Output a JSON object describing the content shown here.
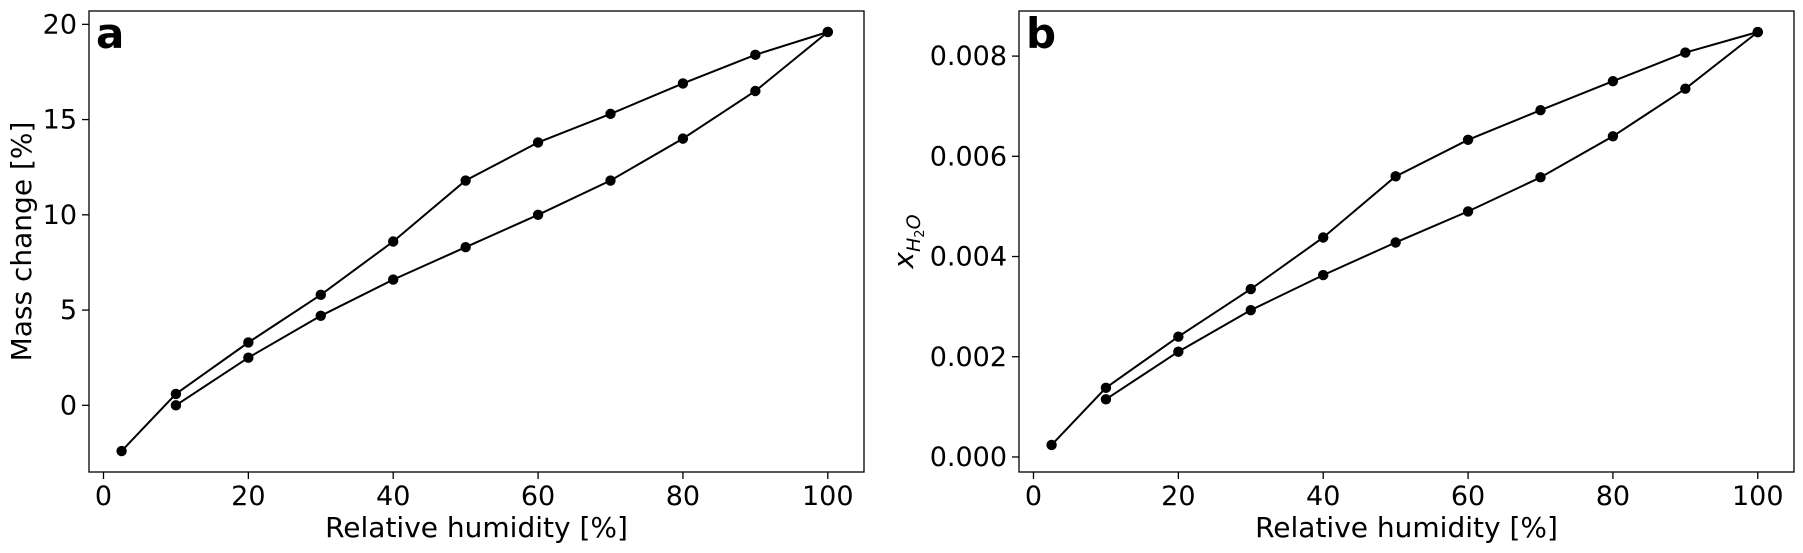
{
  "chart_data": [
    {
      "type": "line",
      "panel_letter": "a",
      "xlabel": "Relative humidity [%]",
      "ylabel": "Mass change [%]",
      "xlim": [
        -2,
        105
      ],
      "ylim": [
        -3.5,
        20.7
      ],
      "xticks": [
        0,
        20,
        40,
        60,
        80,
        100
      ],
      "yticks": [
        0,
        5,
        10,
        15,
        20
      ],
      "grid": false,
      "series": [
        {
          "x": [
            2.5,
            10,
            20,
            30,
            40,
            50,
            60,
            70,
            80,
            90,
            100
          ],
          "y": [
            -2.4,
            0.6,
            3.3,
            5.8,
            8.6,
            11.8,
            13.8,
            15.3,
            16.9,
            18.4,
            19.6
          ]
        },
        {
          "x": [
            10,
            20,
            30,
            40,
            50,
            60,
            70,
            80,
            90,
            100
          ],
          "y": [
            0.0,
            2.5,
            4.7,
            6.6,
            8.3,
            10.0,
            11.8,
            14.0,
            16.5,
            19.6
          ]
        }
      ]
    },
    {
      "type": "line",
      "panel_letter": "b",
      "xlabel": "Relative humidity [%]",
      "ylabel": "x_{H2O}",
      "ylabel_main": "x",
      "ylabel_sub": "H",
      "ylabel_subsub": "2",
      "ylabel_subtail": "O",
      "xlim": [
        -2,
        105
      ],
      "ylim": [
        -0.0003,
        0.0089
      ],
      "xticks": [
        0,
        20,
        40,
        60,
        80,
        100
      ],
      "yticks": [
        0.0,
        0.002,
        0.004,
        0.006,
        0.008
      ],
      "ytick_decimals": 3,
      "grid": false,
      "series": [
        {
          "x": [
            2.5,
            10,
            20,
            30,
            40,
            50,
            60,
            70,
            80,
            90,
            100
          ],
          "y": [
            0.00024,
            0.00138,
            0.0024,
            0.00335,
            0.00438,
            0.0056,
            0.00633,
            0.00692,
            0.0075,
            0.00807,
            0.00848
          ]
        },
        {
          "x": [
            10,
            20,
            30,
            40,
            50,
            60,
            70,
            80,
            90,
            100
          ],
          "y": [
            0.00115,
            0.0021,
            0.00293,
            0.00363,
            0.00428,
            0.0049,
            0.00558,
            0.0064,
            0.00735,
            0.00848
          ]
        }
      ]
    }
  ]
}
